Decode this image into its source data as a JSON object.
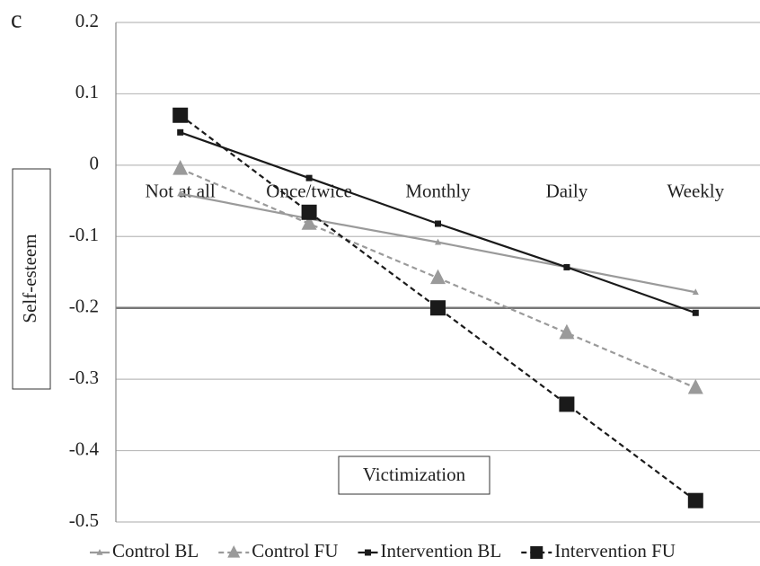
{
  "chart_data": {
    "type": "line",
    "annotation": "c",
    "ylabel": "Self-esteem",
    "xlabel": "Victimization",
    "categories": [
      "Not at all",
      "Once/twice",
      "Monthly",
      "Daily",
      "Weekly"
    ],
    "ylim": [
      -0.5,
      0.2
    ],
    "yticks": [
      0.2,
      0.1,
      0,
      -0.1,
      -0.2,
      -0.3,
      -0.4,
      -0.5
    ],
    "grid": true,
    "xaxis_crosses": -0.2,
    "legend": "bottom",
    "series": [
      {
        "name": "Control BL",
        "color": "#9a9a9a",
        "marker": "triangle",
        "dashed": false,
        "values": [
          -0.04,
          -0.075,
          -0.108,
          -0.143,
          -0.178
        ]
      },
      {
        "name": "Control FU",
        "color": "#9a9a9a",
        "marker": "triangle",
        "dashed": true,
        "values": [
          -0.005,
          -0.082,
          -0.158,
          -0.235,
          -0.312
        ]
      },
      {
        "name": "Intervention BL",
        "color": "#1a1a1a",
        "marker": "square",
        "dashed": false,
        "values": [
          0.046,
          -0.018,
          -0.082,
          -0.143,
          -0.207
        ]
      },
      {
        "name": "Intervention FU",
        "color": "#1a1a1a",
        "marker": "square",
        "dashed": true,
        "values": [
          0.07,
          -0.066,
          -0.2,
          -0.335,
          -0.47
        ]
      }
    ]
  }
}
